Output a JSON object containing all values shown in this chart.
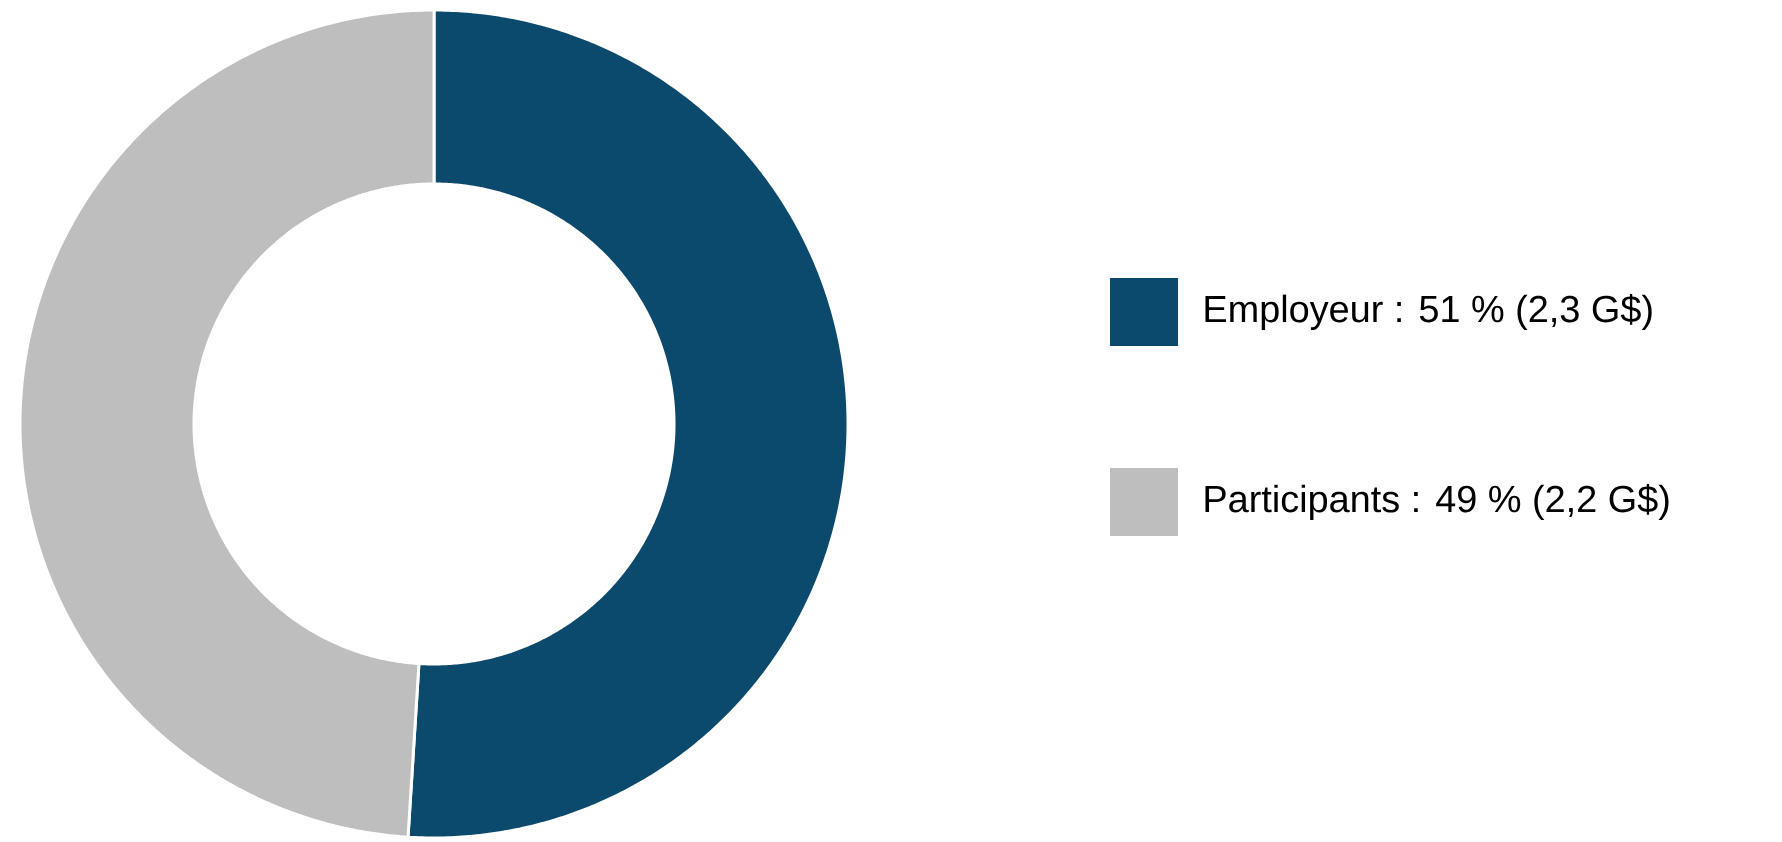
{
  "chart_data": {
    "type": "donut",
    "categories": [
      "Employeur : 51 % (2,3 G$)",
      "Participants : 49 % (2,2 G$)"
    ],
    "values": [
      51,
      49
    ],
    "colors": [
      "#0b4a6c",
      "#bebebe"
    ],
    "legend": "right"
  }
}
